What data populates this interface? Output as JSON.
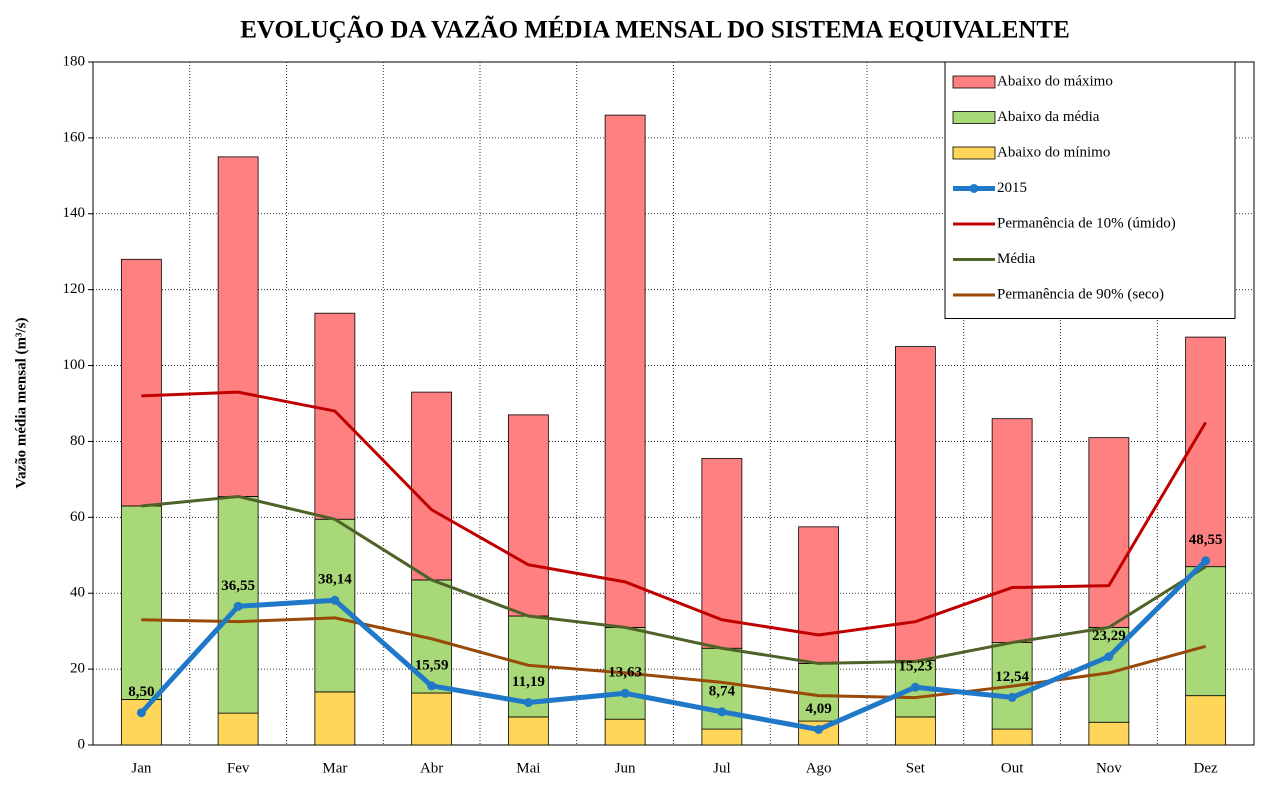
{
  "chart_data": {
    "type": "bar",
    "title": "EVOLUÇÃO DA VAZÃO MÉDIA MENSAL DO SISTEMA EQUIVALENTE",
    "y_label": "Vazão média mensal (m³/s)",
    "categories": [
      "Jan",
      "Fev",
      "Mar",
      "Abr",
      "Mai",
      "Jun",
      "Jul",
      "Ago",
      "Set",
      "Out",
      "Nov",
      "Dez"
    ],
    "ylim": [
      0,
      180
    ],
    "yticks": [
      0,
      20,
      40,
      60,
      80,
      100,
      120,
      140,
      160,
      180
    ],
    "grid": true,
    "stacked": true,
    "legend": "top-right",
    "series": [
      {
        "name": "Abaixo do máximo",
        "kind": "bar",
        "color": "#ff8080",
        "values": [
          65,
          89.5,
          54.3,
          49.5,
          53,
          135,
          50,
          36,
          82.7,
          59,
          50,
          60.5
        ]
      },
      {
        "name": "Abaixo da média",
        "kind": "bar",
        "color": "#a9d878",
        "values": [
          51,
          57.1,
          45.5,
          29.8,
          26.6,
          24.2,
          21.3,
          15.2,
          14.9,
          22.8,
          25,
          34
        ]
      },
      {
        "name": "Abaixo do mínimo",
        "kind": "bar",
        "color": "#ffd65a",
        "values": [
          12,
          8.4,
          14,
          13.7,
          7.4,
          6.8,
          4.2,
          6.3,
          7.4,
          4.2,
          6,
          13
        ]
      },
      {
        "name": "2015",
        "kind": "line",
        "color": "#1f78c8",
        "marker": true,
        "values": [
          8.5,
          36.55,
          38.14,
          15.59,
          11.19,
          13.63,
          8.74,
          4.09,
          15.23,
          12.54,
          23.29,
          48.55
        ],
        "value_labels": [
          "8,50",
          "36,55",
          "38,14",
          "15,59",
          "11,19",
          "13,63",
          "8,74",
          "4,09",
          "15,23",
          "12,54",
          "23,29",
          "48,55"
        ]
      },
      {
        "name": "Permanência de 10% (úmido)",
        "kind": "line",
        "color": "#c00000",
        "values": [
          92,
          93,
          88,
          62,
          47.5,
          43,
          33,
          29,
          32.5,
          41.5,
          42,
          85
        ]
      },
      {
        "name": "Média",
        "kind": "line",
        "color": "#4f6228",
        "values": [
          63,
          65.5,
          59.5,
          43.5,
          34,
          31,
          25.5,
          21.5,
          22,
          27,
          31,
          47
        ]
      },
      {
        "name": "Permanência de 90% (seco)",
        "kind": "line",
        "color": "#984807",
        "values": [
          33,
          32.5,
          33.5,
          28,
          21,
          19,
          16.5,
          13,
          12.5,
          15.5,
          19,
          26
        ]
      }
    ]
  }
}
